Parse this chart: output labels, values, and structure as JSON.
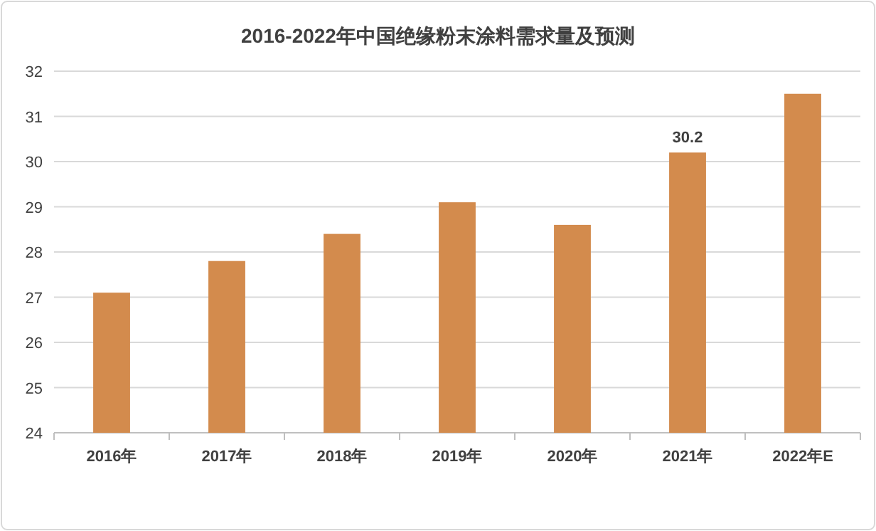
{
  "chart_data": {
    "type": "bar",
    "title": "2016-2022年中国绝缘粉末涂料需求量及预测",
    "categories": [
      "2016年",
      "2017年",
      "2018年",
      "2019年",
      "2020年",
      "2021年",
      "2022年E"
    ],
    "values": [
      27.1,
      27.8,
      28.4,
      29.1,
      28.6,
      30.2,
      31.5
    ],
    "value_labels": [
      null,
      null,
      null,
      null,
      null,
      "30.2",
      null
    ],
    "color": "#d38b4d",
    "ylim": [
      24,
      32
    ],
    "yticks": [
      24,
      25,
      26,
      27,
      28,
      29,
      30,
      31,
      32
    ],
    "grid": "y"
  }
}
